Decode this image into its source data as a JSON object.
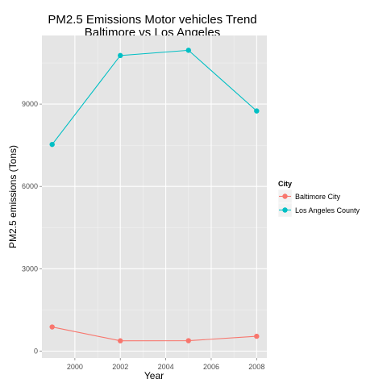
{
  "chart_data": {
    "type": "line",
    "title": [
      "PM2.5 Emissions Motor vehicles Trend",
      "Baltimore vs Los Angeles"
    ],
    "xlabel": "Year",
    "ylabel": "PM2.5 emissions (Tons)",
    "x": [
      1999,
      2002,
      2005,
      2008
    ],
    "xlim": [
      1998.55,
      2008.45
    ],
    "ylim": [
      -250,
      11500
    ],
    "xticks": [
      2000,
      2002,
      2004,
      2006,
      2008
    ],
    "yticks": [
      0,
      3000,
      6000,
      9000
    ],
    "grid": true,
    "legend": {
      "title": "City",
      "position": "right"
    },
    "series": [
      {
        "name": "Baltimore City",
        "color": "#F8766D",
        "values": [
          880,
          375,
          380,
          540
        ]
      },
      {
        "name": "Los Angeles County",
        "color": "#00BFC4",
        "values": [
          7530,
          10770,
          10960,
          8750
        ]
      }
    ]
  },
  "colors": {
    "panel_background": "#e5e5e5",
    "grid_major": "#ffffff",
    "grid_minor": "#f2f2f2",
    "tick_text": "#4d4d4d"
  }
}
